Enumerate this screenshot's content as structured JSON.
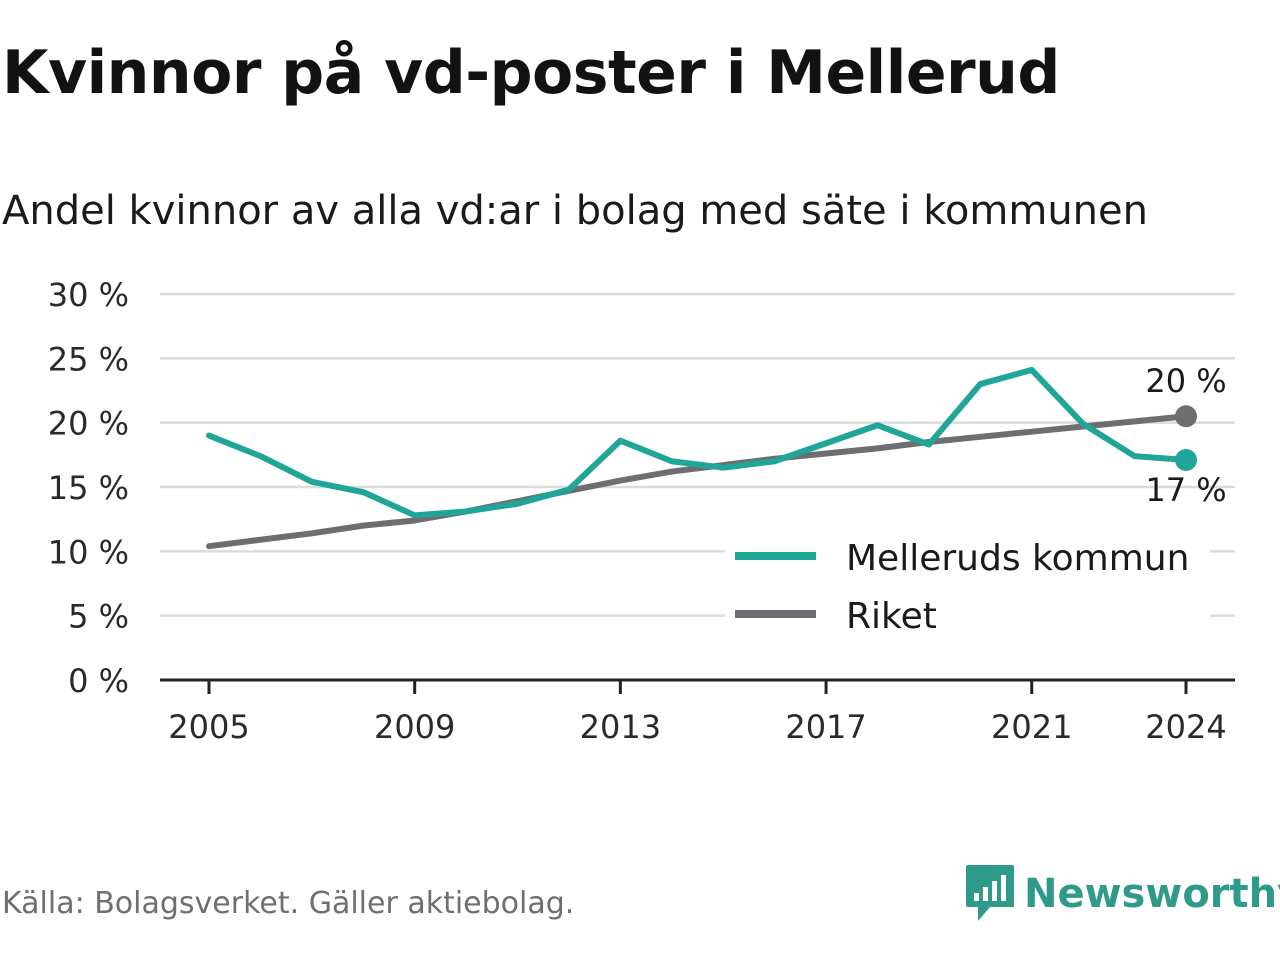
{
  "header": {
    "title": "Kvinnor på vd-poster i Mellerud",
    "subtitle": "Andel kvinnor av alla vd:ar i bolag med säte i kommunen"
  },
  "footer": {
    "source": "Källa: Bolagsverket. Gäller aktiebolag.",
    "brand": "Newsworthy"
  },
  "colors": {
    "kommun": "#1fa699",
    "riket": "#6e6d72",
    "grid": "#dcdcdc",
    "axis": "#222222",
    "brand": "#2e9a8a"
  },
  "chart_data": {
    "type": "line",
    "title": "Kvinnor på vd-poster i Mellerud",
    "subtitle": "Andel kvinnor av alla vd:ar i bolag med säte i kommunen",
    "x": [
      2005,
      2006,
      2007,
      2008,
      2009,
      2010,
      2011,
      2012,
      2013,
      2014,
      2015,
      2016,
      2017,
      2018,
      2019,
      2020,
      2021,
      2022,
      2023,
      2024
    ],
    "x_ticks": [
      2005,
      2009,
      2013,
      2017,
      2021,
      2024
    ],
    "x_tick_labels": [
      "2005",
      "2009",
      "2013",
      "2017",
      "2021",
      "2024"
    ],
    "ylim": [
      0,
      30
    ],
    "y_ticks": [
      0,
      5,
      10,
      15,
      20,
      25,
      30
    ],
    "y_tick_labels": [
      "0 %",
      "5 %",
      "10 %",
      "15 %",
      "20 %",
      "25 %",
      "30 %"
    ],
    "grid": true,
    "legend_position": "bottom-right",
    "series": [
      {
        "name": "Melleruds kommun",
        "color": "#1fa699",
        "values": [
          19.0,
          17.4,
          15.4,
          14.6,
          12.8,
          13.1,
          13.7,
          14.8,
          18.6,
          17.0,
          16.5,
          17.0,
          18.4,
          19.8,
          18.3,
          23.0,
          24.1,
          19.9,
          17.4,
          17.1
        ],
        "end_label": "17 %"
      },
      {
        "name": "Riket",
        "color": "#6e6d72",
        "values": [
          10.4,
          10.9,
          11.4,
          12.0,
          12.4,
          13.1,
          13.9,
          14.7,
          15.5,
          16.2,
          16.7,
          17.2,
          17.6,
          18.0,
          18.5,
          18.9,
          19.3,
          19.7,
          20.1,
          20.5
        ],
        "end_label": "20 %"
      }
    ]
  }
}
